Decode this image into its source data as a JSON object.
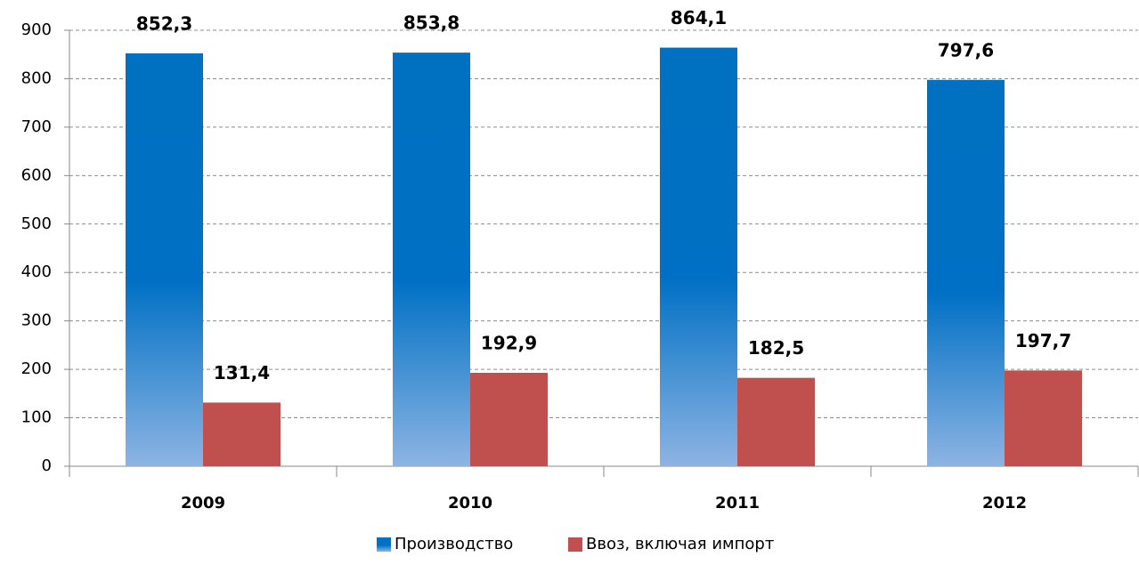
{
  "chart_data": {
    "type": "bar",
    "categories": [
      "2009",
      "2010",
      "2011",
      "2012"
    ],
    "series": [
      {
        "name": "Производство",
        "color": "#0070c0",
        "values": [
          852.3,
          853.8,
          864.1,
          797.6
        ],
        "value_labels": [
          "852,3",
          "853,8",
          "864,1",
          "797,6"
        ]
      },
      {
        "name": "Ввоз, включая импорт",
        "color": "#c0504d",
        "values": [
          131.4,
          192.9,
          182.5,
          197.7
        ],
        "value_labels": [
          "131,4",
          "192,9",
          "182,5",
          "197,7"
        ]
      }
    ],
    "ylim": [
      0,
      900
    ],
    "yticks": [
      0,
      100,
      200,
      300,
      400,
      500,
      600,
      700,
      800,
      900
    ],
    "grid": true,
    "legend": "bottom"
  }
}
